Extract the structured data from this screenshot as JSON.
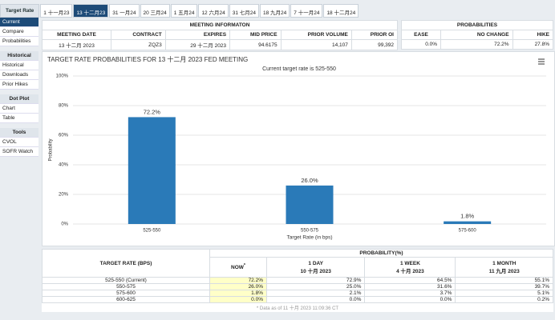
{
  "tabs": {
    "label": "Target Rate",
    "items": [
      "1 十一月23",
      "13 十二月23",
      "31 一月24",
      "20 三月24",
      "1 五月24",
      "12 六月24",
      "31 七月24",
      "18 九月24",
      "7 十一月24",
      "18 十二月24"
    ]
  },
  "sidebar": {
    "links": [
      "Current",
      "Compare",
      "Probabilities"
    ],
    "groups": [
      {
        "title": "Historical",
        "links": [
          "Historical",
          "Downloads",
          "Prior Hikes"
        ]
      },
      {
        "title": "Dot Plot",
        "links": [
          "Chart",
          "Table"
        ]
      },
      {
        "title": "Tools",
        "links": [
          "CVOL",
          "SOFR Watch"
        ]
      }
    ]
  },
  "meeting_info": {
    "title": "MEETING INFORMATON",
    "headers": [
      "MEETING DATE",
      "CONTRACT",
      "EXPIRES",
      "MID PRICE",
      "PRIOR VOLUME",
      "PRIOR OI"
    ],
    "values": [
      "13 十二月 2023",
      "ZQZ3",
      "29 十二月 2023",
      "94.6175",
      "14,107",
      "99,392"
    ]
  },
  "probabilities": {
    "title": "PROBABILITIES",
    "headers": [
      "EASE",
      "NO CHANGE",
      "HIKE"
    ],
    "values": [
      "0.0%",
      "72.2%",
      "27.8%"
    ]
  },
  "chart_data": {
    "type": "bar",
    "title": "TARGET RATE PROBABILITIES FOR 13 十二月 2023 FED MEETING",
    "subtitle": "Current target rate is 525-550",
    "x_label": "Target Rate (in bps)",
    "y_label": "Probability",
    "categories": [
      "525-550",
      "550-575",
      "575-600"
    ],
    "values": [
      72.2,
      26.0,
      1.8
    ],
    "value_labels": [
      "72.2%",
      "26.0%",
      "1.8%"
    ],
    "color": "#2a7ab8",
    "ylim": [
      0,
      100
    ],
    "yticks": [
      {
        "value": 0,
        "label": "0%"
      },
      {
        "value": 20,
        "label": "20%"
      },
      {
        "value": 40,
        "label": "40%"
      },
      {
        "value": 60,
        "label": "60%"
      },
      {
        "value": 80,
        "label": "80%"
      },
      {
        "value": 100,
        "label": "100%"
      }
    ],
    "grid": true
  },
  "prob_table": {
    "rate_header": "TARGET RATE (BPS)",
    "group_header": "PROBABILITY(%)",
    "columns": [
      {
        "title": "NOW",
        "mark": "*"
      },
      {
        "title": "1 DAY",
        "date": "10 十月 2023"
      },
      {
        "title": "1 WEEK",
        "date": "4 十月 2023"
      },
      {
        "title": "1 MONTH",
        "date": "11 九月 2023"
      }
    ],
    "rows": [
      [
        "525-550 (Current)",
        "72.2%",
        "72.9%",
        "64.5%",
        "55.1%"
      ],
      [
        "550-575",
        "26.0%",
        "25.0%",
        "31.6%",
        "39.7%"
      ],
      [
        "575-600",
        "1.8%",
        "2.1%",
        "3.7%",
        "5.1%"
      ],
      [
        "600-625",
        "0.0%",
        "0.0%",
        "0.0%",
        "0.2%"
      ]
    ],
    "footnote": "* Data as of 11 十月 2023 11:09:36 CT"
  }
}
